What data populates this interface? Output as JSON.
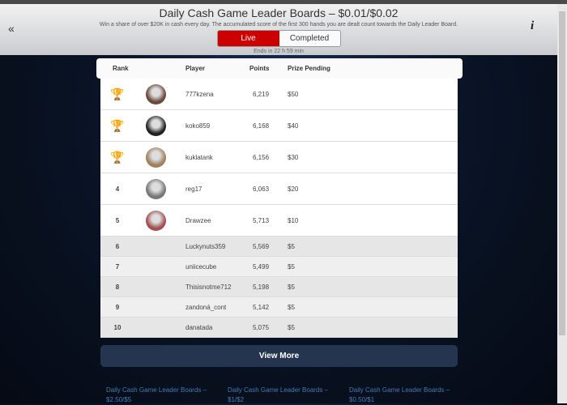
{
  "header": {
    "title": "Daily Cash Game Leader Boards – $0.01/$0.02",
    "subtitle": "Win a share of over $20K in cash every day. The accumulated score of the first 300 hands you are dealt count towards the Daily Leader Board.",
    "tabs": [
      "Live",
      "Completed"
    ],
    "active_tab": "Live",
    "ends": "Ends in 22 h 59 min",
    "back_icon": "double-chevron-left-icon",
    "info_icon": "info-icon"
  },
  "table": {
    "columns": [
      "Rank",
      "Player",
      "Points",
      "Prize Pending"
    ],
    "rows": [
      {
        "rank": "",
        "trophy": "gold",
        "player": "777kzena",
        "points": "6,219",
        "prize": "$50"
      },
      {
        "rank": "",
        "trophy": "silver",
        "player": "koko859",
        "points": "6,168",
        "prize": "$40"
      },
      {
        "rank": "",
        "trophy": "bronze",
        "player": "kuklatank",
        "points": "6,156",
        "prize": "$30"
      },
      {
        "rank": "4",
        "player": "reg17",
        "points": "6,063",
        "prize": "$20"
      },
      {
        "rank": "5",
        "player": "Drawzee",
        "points": "5,713",
        "prize": "$10"
      },
      {
        "rank": "6",
        "player": "Luckynuts359",
        "points": "5,569",
        "prize": "$5"
      },
      {
        "rank": "7",
        "player": "uniicecube",
        "points": "5,499",
        "prize": "$5"
      },
      {
        "rank": "8",
        "player": "Thisisnotme712",
        "points": "5,198",
        "prize": "$5"
      },
      {
        "rank": "9",
        "player": "zandoná_cont",
        "points": "5,142",
        "prize": "$5"
      },
      {
        "rank": "10",
        "player": "danatada",
        "points": "5,075",
        "prize": "$5"
      }
    ]
  },
  "view_more": "View More",
  "links": [
    "Daily Cash Game Leader Boards – $2.50/$5",
    "Daily Cash Game Leader Boards – $1/$2",
    "Daily Cash Game Leader Boards – $0.50/$1"
  ],
  "colors": {
    "accent": "#cc0000",
    "gold": "#d4a017",
    "silver": "#a8a8a8",
    "bronze": "#c07a3a",
    "button": "#253550"
  }
}
